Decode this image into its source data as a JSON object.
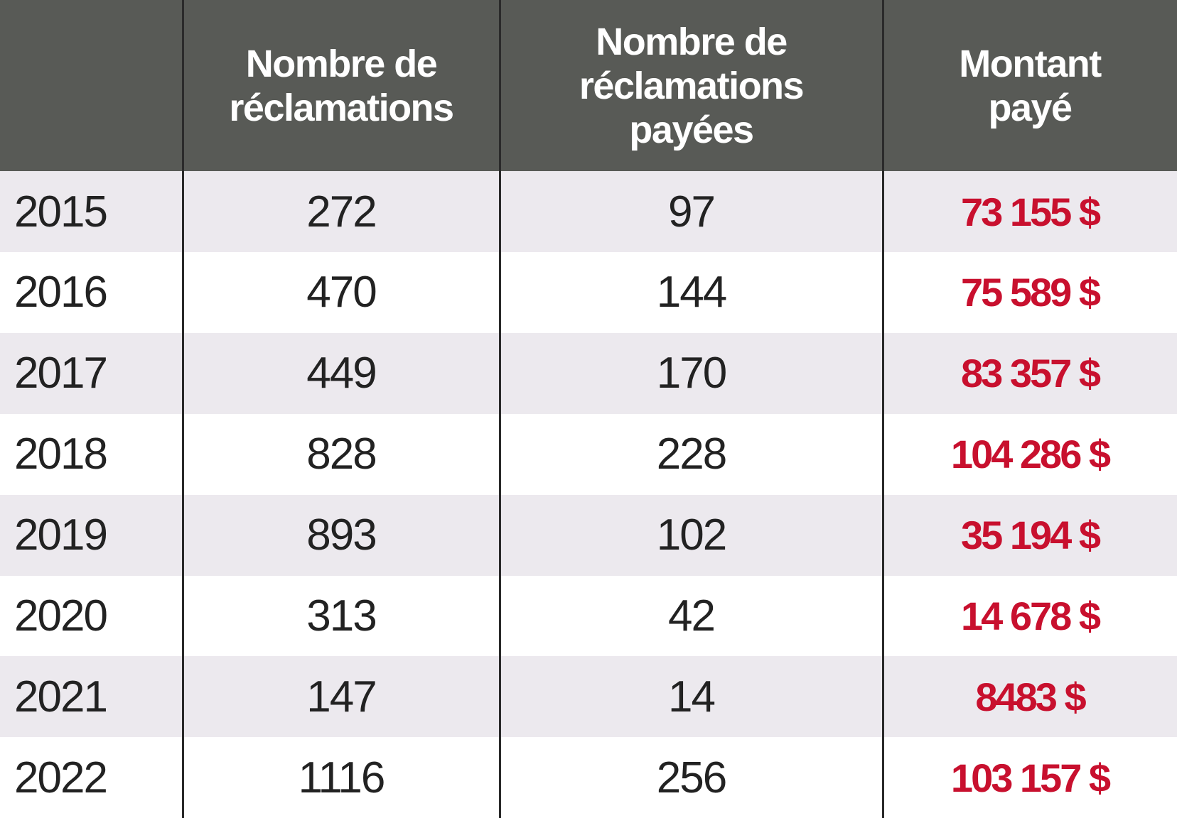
{
  "header": {
    "year": "",
    "claims": "Nombre de réclamations",
    "paid_claims": "Nombre de réclamations payées",
    "amount_paid": "Montant payé"
  },
  "colors": {
    "header_bg": "#585a56",
    "amount": "#c8102e",
    "row_alt": "#ece9ee"
  },
  "rows": [
    {
      "year": "2015",
      "claims": "272",
      "paid_claims": "97",
      "amount_paid": "73 155 $"
    },
    {
      "year": "2016",
      "claims": "470",
      "paid_claims": "144",
      "amount_paid": "75 589 $"
    },
    {
      "year": "2017",
      "claims": "449",
      "paid_claims": "170",
      "amount_paid": "83 357 $"
    },
    {
      "year": "2018",
      "claims": "828",
      "paid_claims": "228",
      "amount_paid": "104 286 $"
    },
    {
      "year": "2019",
      "claims": "893",
      "paid_claims": "102",
      "amount_paid": "35 194 $"
    },
    {
      "year": "2020",
      "claims": "313",
      "paid_claims": "42",
      "amount_paid": "14 678 $"
    },
    {
      "year": "2021",
      "claims": "147",
      "paid_claims": "14",
      "amount_paid": "8483 $"
    },
    {
      "year": "2022",
      "claims": "1116",
      "paid_claims": "256",
      "amount_paid": "103 157 $"
    }
  ]
}
